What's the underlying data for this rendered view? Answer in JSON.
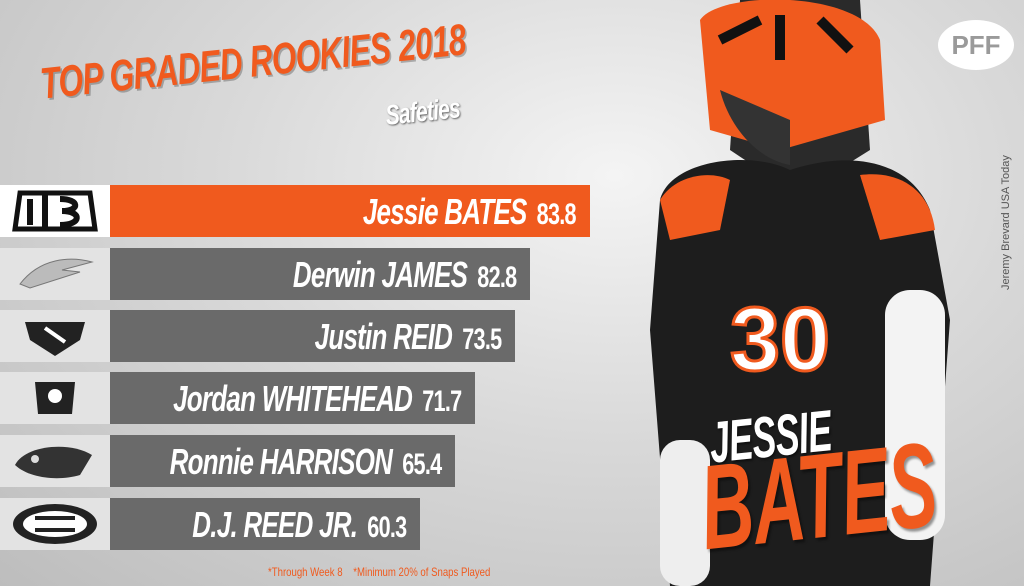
{
  "header": {
    "title": "TOP GRADED ROOKIES 2018",
    "subtitle": "Safeties"
  },
  "players": [
    {
      "name": "Jessie BATES",
      "grade": 83.8
    },
    {
      "name": "Derwin JAMES",
      "grade": 82.8
    },
    {
      "name": "Justin REID",
      "grade": 73.5
    },
    {
      "name": "Jordan WHITEHEAD",
      "grade": 71.7
    },
    {
      "name": "Ronnie HARRISON",
      "grade": 65.4
    },
    {
      "name": "D.J. REED JR.",
      "grade": 60.3
    }
  ],
  "footnotes": [
    "*Through Week 8",
    "*Minimum 20% of Snaps Played"
  ],
  "feature": {
    "first": "JESSIE",
    "last": "BATES",
    "number": "30"
  },
  "brand": "PFF",
  "credit": "Jeremy Brevard USA Today"
}
